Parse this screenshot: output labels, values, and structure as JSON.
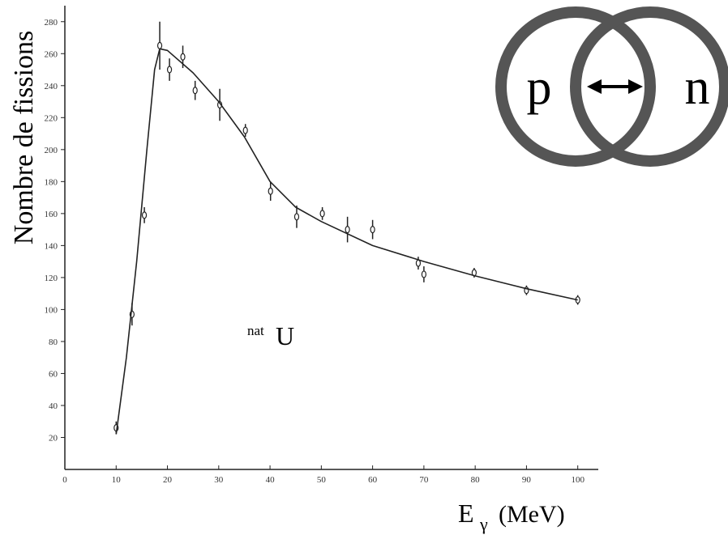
{
  "chart_data": {
    "type": "errorbar",
    "y_label": "Nombre de fissions",
    "x_label": [
      "E",
      "γ",
      "(MeV)"
    ],
    "annotation": [
      "nat",
      "U"
    ],
    "color": "#222222",
    "xlim": [
      0,
      104
    ],
    "xticks": [
      0,
      10,
      20,
      30,
      40,
      50,
      60,
      70,
      80,
      90,
      100
    ],
    "ylim": [
      0,
      290
    ],
    "yticks": [
      20,
      40,
      60,
      80,
      100,
      120,
      140,
      160,
      180,
      200,
      220,
      240,
      260,
      280
    ],
    "series": [
      {
        "x": [
          10,
          13.1,
          15.5,
          18.5,
          20.4,
          23,
          25.4,
          30.2,
          35.2,
          40.1,
          45.2,
          50.2,
          55.1,
          60,
          68.9,
          70,
          79.8,
          90,
          100
        ],
        "values": [
          26,
          97,
          159,
          265,
          250,
          258,
          237,
          228,
          212,
          174,
          158,
          160,
          150,
          150,
          129,
          122,
          123,
          112,
          106
        ],
        "errors": [
          4,
          7,
          5,
          15,
          7,
          7,
          6,
          10,
          4,
          6,
          7,
          4,
          8,
          6,
          4,
          5,
          3,
          3,
          3
        ]
      },
      {
        "x": [
          10,
          12,
          14,
          16,
          17.5,
          18.5,
          20,
          25,
          30,
          35,
          40,
          45,
          50,
          60,
          70,
          80,
          90,
          100
        ],
        "values": [
          22,
          70,
          130,
          200,
          250,
          263,
          262,
          248,
          230,
          208,
          180,
          164,
          155,
          140,
          130,
          121,
          113,
          106
        ]
      }
    ]
  },
  "diagram": {
    "labels": [
      "p",
      "n"
    ]
  }
}
